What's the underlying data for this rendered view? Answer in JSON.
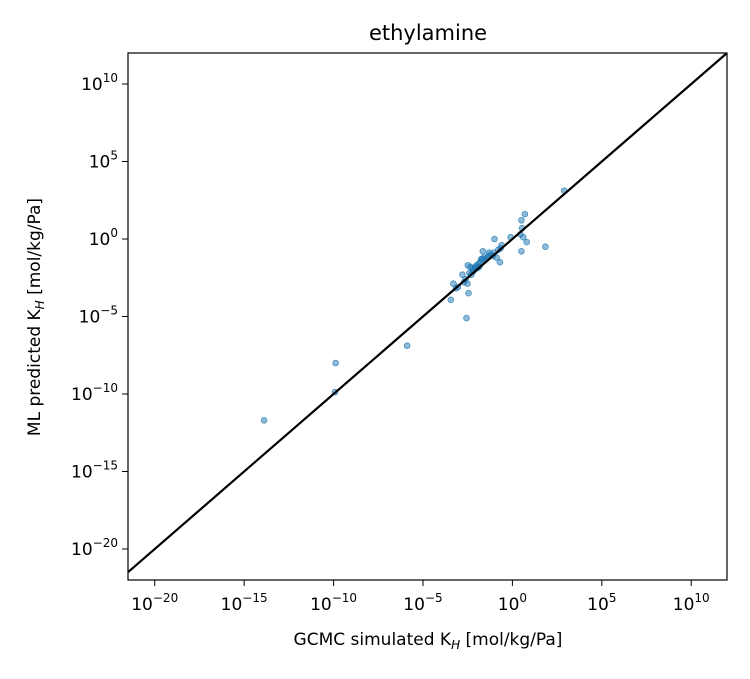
{
  "chart_data": {
    "type": "scatter",
    "title": "ethylamine",
    "xlabel": "GCMC simulated K",
    "xlabel_sub": "H",
    "xlabel_unit": " [mol/kg/Pa]",
    "ylabel": "ML predicted K",
    "ylabel_sub": "H",
    "ylabel_unit": " [mol/kg/Pa]",
    "x_scale": "log",
    "y_scale": "log",
    "xlim": [
      3.2e-22,
      1000000000000.0
    ],
    "ylim": [
      1e-22,
      1000000000000.0
    ],
    "x_ticks": [
      {
        "base": "10",
        "exp": "−20",
        "value": 1e-20
      },
      {
        "base": "10",
        "exp": "−15",
        "value": 1e-15
      },
      {
        "base": "10",
        "exp": "−10",
        "value": 1e-10
      },
      {
        "base": "10",
        "exp": "−5",
        "value": 1e-05
      },
      {
        "base": "10",
        "exp": "0",
        "value": 1
      },
      {
        "base": "10",
        "exp": "5",
        "value": 100000.0
      },
      {
        "base": "10",
        "exp": "10",
        "value": 10000000000.0
      }
    ],
    "y_ticks": [
      {
        "base": "10",
        "exp": "−20",
        "value": 1e-20
      },
      {
        "base": "10",
        "exp": "−15",
        "value": 1e-15
      },
      {
        "base": "10",
        "exp": "−10",
        "value": 1e-10
      },
      {
        "base": "10",
        "exp": "−5",
        "value": 1e-05
      },
      {
        "base": "10",
        "exp": "0",
        "value": 1
      },
      {
        "base": "10",
        "exp": "5",
        "value": 100000.0
      },
      {
        "base": "10",
        "exp": "10",
        "value": 10000000000.0
      }
    ],
    "parity_line": true,
    "grid": false,
    "marker_color": "#1f77b4",
    "line_color": "#000000",
    "points": [
      [
        1.3e-14,
        2e-12
      ],
      [
        1.3e-10,
        1e-08
      ],
      [
        1.2e-10,
        1.3e-10
      ],
      [
        1.3e-06,
        1.3e-07
      ],
      [
        0.00036,
        0.00012
      ],
      [
        0.0005,
        0.0013
      ],
      [
        0.0007,
        0.00066
      ],
      [
        0.0009,
        0.0008
      ],
      [
        0.0016,
        0.005
      ],
      [
        0.002,
        0.0016
      ],
      [
        0.0024,
        0.0025
      ],
      [
        0.0031,
        0.0013
      ],
      [
        0.0027,
        7.9e-06
      ],
      [
        0.0035,
        0.00032
      ],
      [
        0.0032,
        0.02
      ],
      [
        0.0045,
        0.016
      ],
      [
        0.004,
        0.0063
      ],
      [
        0.005,
        0.005
      ],
      [
        0.0056,
        0.013
      ],
      [
        0.0063,
        0.0079
      ],
      [
        0.0071,
        0.01
      ],
      [
        0.008,
        0.013
      ],
      [
        0.0089,
        0.016
      ],
      [
        0.01,
        0.02
      ],
      [
        0.011,
        0.013
      ],
      [
        0.013,
        0.025
      ],
      [
        0.014,
        0.016
      ],
      [
        0.016,
        0.032
      ],
      [
        0.018,
        0.05
      ],
      [
        0.02,
        0.05
      ],
      [
        0.022,
        0.16
      ],
      [
        0.025,
        0.063
      ],
      [
        0.032,
        0.05
      ],
      [
        0.04,
        0.063
      ],
      [
        0.045,
        0.079
      ],
      [
        0.05,
        0.13
      ],
      [
        0.063,
        0.1
      ],
      [
        0.079,
        0.079
      ],
      [
        0.089,
        0.13
      ],
      [
        0.1,
        1.0
      ],
      [
        0.13,
        0.063
      ],
      [
        0.16,
        0.2
      ],
      [
        0.2,
        0.032
      ],
      [
        0.22,
        0.25
      ],
      [
        0.25,
        0.4
      ],
      [
        0.79,
        1.3
      ],
      [
        3.2,
        16.0
      ],
      [
        2.8,
        2.0
      ],
      [
        3.5,
        5.0
      ],
      [
        4.0,
        1.3
      ],
      [
        3.2,
        0.16
      ],
      [
        5.0,
        40.0
      ],
      [
        6.3,
        0.63
      ],
      [
        70.0,
        0.32
      ],
      [
        790.0,
        1300.0
      ]
    ]
  }
}
